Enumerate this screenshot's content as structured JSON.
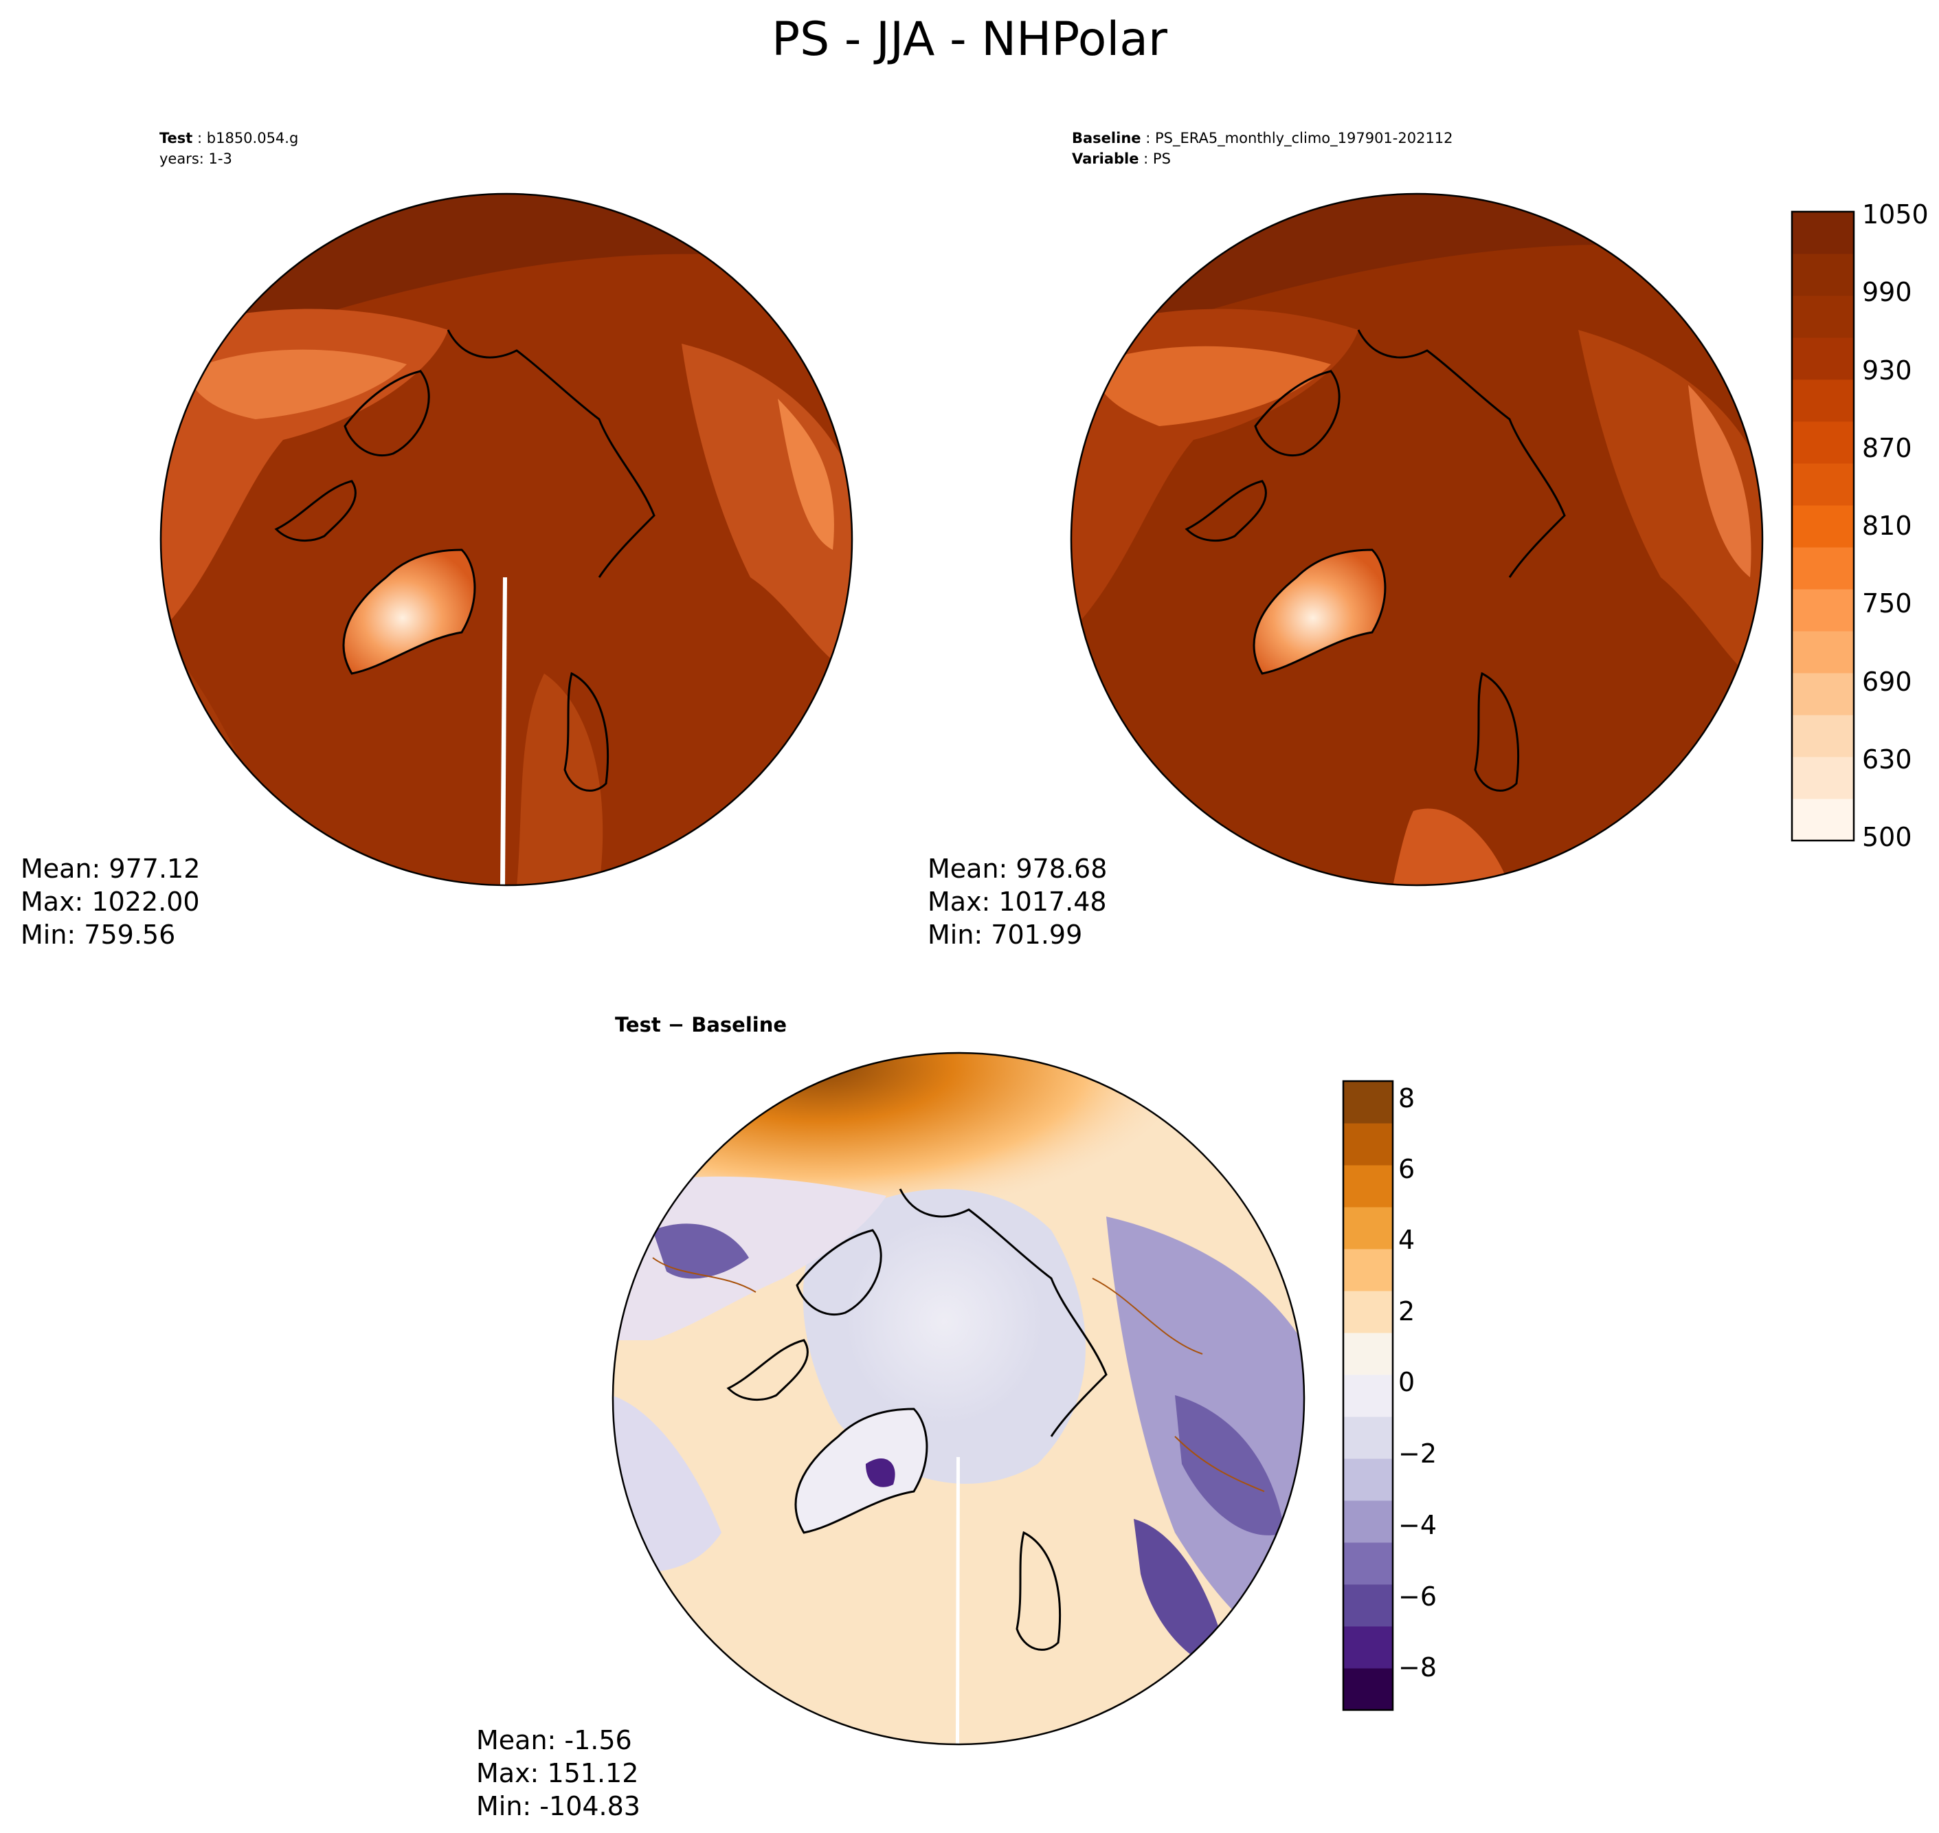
{
  "figure": {
    "title": "PS - JJA - NHPolar"
  },
  "panels": {
    "test": {
      "label_key": "Test",
      "label_value": "b1850.054.g",
      "years": "years: 1-3",
      "mean": "Mean: 977.12",
      "max": "Max: 1022.00",
      "min": "Min: 759.56"
    },
    "baseline": {
      "label_key": "Baseline",
      "label_value": "PS_ERA5_monthly_climo_197901-202112",
      "variable_key": "Variable",
      "variable_value": "PS",
      "mean": "Mean: 978.68",
      "max": "Max: 1017.48",
      "min": "Min: 701.99"
    },
    "diff": {
      "title_a": "Test",
      "title_op": " − ",
      "title_b": "Baseline",
      "mean": "Mean: -1.56",
      "max": "Max: 151.12",
      "min": "Min: -104.83"
    }
  },
  "colorbars": {
    "ps": {
      "ticks": [
        "1050",
        "990",
        "930",
        "870",
        "810",
        "750",
        "690",
        "630",
        "500"
      ],
      "colors": [
        "#fff5eb",
        "#fee6ce",
        "#fdd9b4",
        "#fdc590",
        "#fdae6b",
        "#fd9a50",
        "#f8802c",
        "#ef6a10",
        "#e05a0a",
        "#d44d05",
        "#c24203",
        "#a83503",
        "#9a3202",
        "#8e2e02",
        "#7f2704"
      ]
    },
    "diff": {
      "ticks": [
        "8",
        "6",
        "4",
        "2",
        "0",
        "−2",
        "−4",
        "−6",
        "−8"
      ],
      "colors": [
        "#2d004b",
        "#4b1f83",
        "#5f4a9a",
        "#7d6eb3",
        "#a29acb",
        "#c3c1e0",
        "#dcdcec",
        "#efedf5",
        "#f9f3ea",
        "#fddfb7",
        "#fdc27a",
        "#f1a13a",
        "#e07f14",
        "#bc5f06",
        "#8b4709"
      ]
    }
  },
  "maps": {
    "test_land_color": "#bf4a1a",
    "test_ocean_color": "#962e03",
    "greenland_test_color": "#f9b98c",
    "baseline_land_color": "#a33a08",
    "baseline_ocean_color": "#942f02",
    "diff_ocean_color": "#f4f0f5",
    "diff_warm_color": "#fbd7a8",
    "diff_cool_color": "#b9b3d8"
  }
}
